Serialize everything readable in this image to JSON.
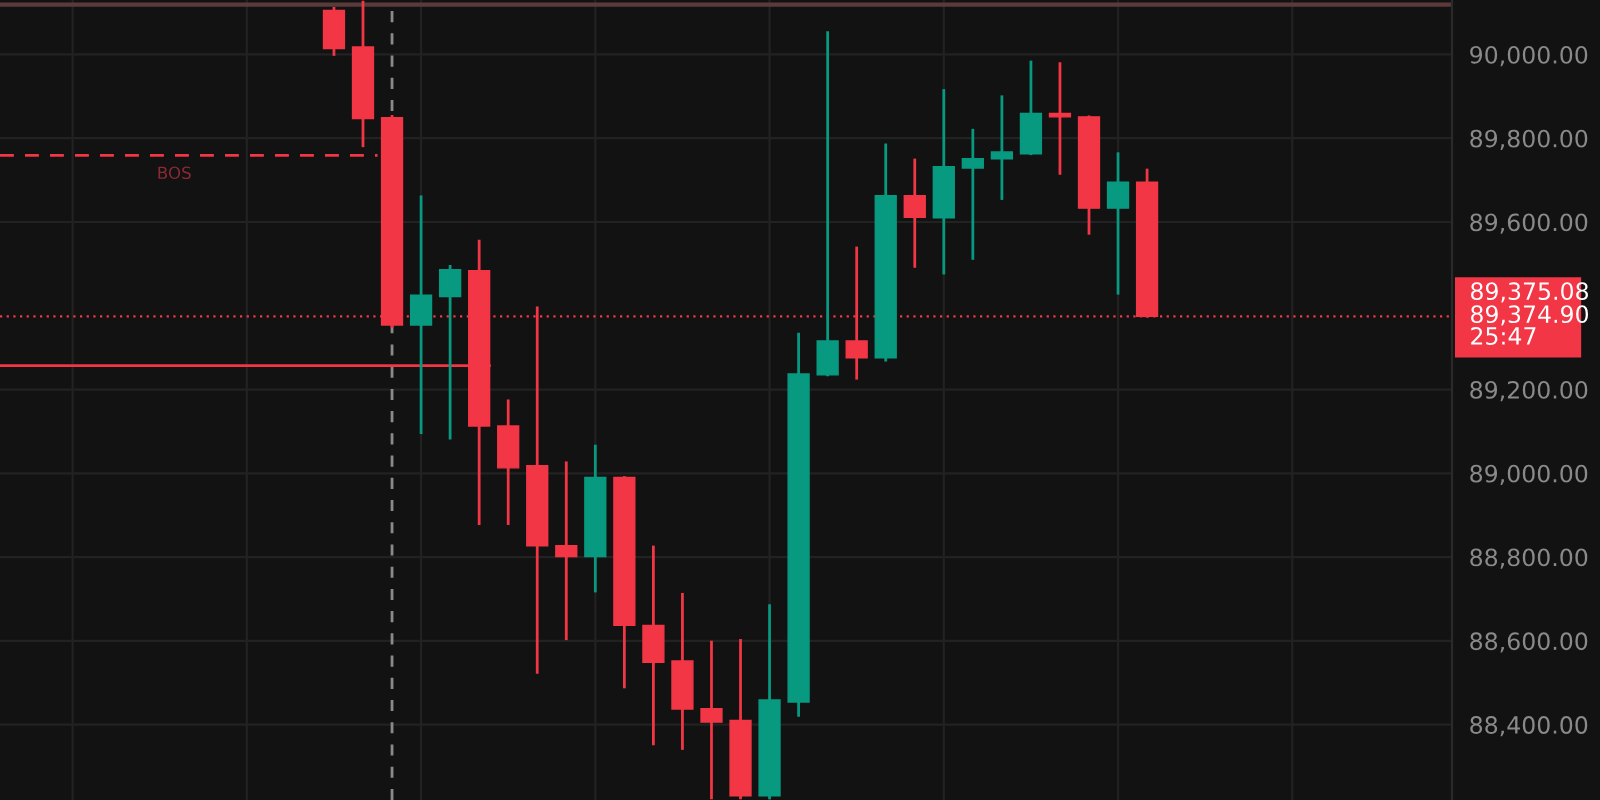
{
  "chart_data": {
    "type": "candlestick",
    "categories": [
      null,
      null,
      null,
      null,
      null,
      null,
      null,
      null,
      null,
      null,
      null,
      null,
      null,
      null,
      null,
      null,
      null,
      null,
      null,
      null,
      null,
      null,
      null,
      null,
      null,
      null,
      null,
      null,
      null,
      null,
      null,
      null,
      null,
      null,
      null,
      null,
      null,
      null,
      null,
      null,
      null,
      null,
      null,
      null,
      null,
      null,
      null,
      null,
      null,
      null
    ],
    "ohlc": [
      null,
      null,
      null,
      null,
      null,
      null,
      null,
      null,
      null,
      null,
      null,
      [
        90105,
        90110,
        90000,
        90014
      ],
      [
        90018,
        90125,
        89782,
        89847
      ],
      [
        89849,
        89852,
        89350,
        89354
      ],
      [
        89354,
        89660,
        89097,
        89425
      ],
      [
        89422,
        89494,
        89084,
        89486
      ],
      [
        89484,
        89554,
        88880,
        89113
      ],
      [
        89113,
        89173,
        88880,
        89013
      ],
      [
        89018,
        89395,
        88525,
        88827
      ],
      [
        88827,
        89025,
        88605,
        88801
      ],
      [
        88801,
        89065,
        88719,
        88990
      ],
      [
        88990,
        88990,
        88490,
        88637
      ],
      [
        88637,
        88824,
        88354,
        88549
      ],
      [
        88552,
        88711,
        88343,
        88437
      ],
      [
        88438,
        88597,
        88225,
        88406
      ],
      [
        88410,
        88601,
        88225,
        88230
      ],
      [
        88230,
        88684,
        88225,
        88459
      ],
      [
        88454,
        89332,
        88422,
        89237
      ],
      [
        89235,
        90052,
        89235,
        89316
      ],
      [
        89316,
        89538,
        89227,
        89276
      ],
      [
        89276,
        89784,
        89270,
        89663
      ],
      [
        89663,
        89748,
        89494,
        89611
      ],
      [
        89610,
        89914,
        89478,
        89732
      ],
      [
        89729,
        89819,
        89513,
        89751
      ],
      [
        89751,
        89899,
        89656,
        89767
      ],
      [
        89763,
        89982,
        89763,
        89859
      ],
      [
        89859,
        89978,
        89716,
        89851
      ],
      [
        89851,
        89851,
        89573,
        89633
      ],
      [
        89633,
        89763,
        89430,
        89695
      ],
      [
        89695,
        89724,
        89375,
        89375
      ],
      null,
      null,
      null,
      null,
      null,
      null,
      null,
      null,
      null,
      null
    ],
    "colors": [
      null,
      null,
      null,
      null,
      null,
      null,
      null,
      null,
      null,
      null,
      null,
      "#f23645",
      "#f23645",
      "#f23645",
      "#089981",
      "#089981",
      "#f23645",
      "#f23645",
      "#f23645",
      "#f23645",
      "#089981",
      "#f23645",
      "#f23645",
      "#f23645",
      "#f23645",
      "#f23645",
      "#089981",
      "#089981",
      "#089981",
      "#f23645",
      "#089981",
      "#f23645",
      "#089981",
      "#089981",
      "#089981",
      "#089981",
      "#f23645",
      "#f23645",
      "#089981",
      "#f23645",
      null,
      null,
      null,
      null,
      null,
      null,
      null,
      null,
      null,
      null
    ],
    "ylim": [
      88220,
      90130
    ],
    "yticks": [
      {
        "value": 88400,
        "label": "88,400.00"
      },
      {
        "value": 88600,
        "label": "88,600.00"
      },
      {
        "value": 88800,
        "label": "88,800.00"
      },
      {
        "value": 89000,
        "label": "89,000.00"
      },
      {
        "value": 89200,
        "label": "89,200.00"
      },
      {
        "value": 89600,
        "label": "89,600.00"
      },
      {
        "value": 89800,
        "label": "89,800.00"
      },
      {
        "value": 90000,
        "label": "90,000.00"
      }
    ],
    "ref_lines": [
      {
        "axis": "y",
        "value": 89759,
        "label": "BOS",
        "color": "#f23645",
        "line_style": "dashed"
      },
      {
        "axis": "y",
        "value": 89257,
        "color": "#f23645",
        "line_style": "solid"
      },
      {
        "axis": "y",
        "value": 90119,
        "color": "#5a3a3a",
        "line_style": "solid"
      },
      {
        "axis": "y",
        "value": 89374.9,
        "label": "89,374.90",
        "color": "#f23645",
        "line_style": "dotted"
      }
    ],
    "annotations": [
      "89,375.08",
      "25:47"
    ],
    "grid": true
  }
}
